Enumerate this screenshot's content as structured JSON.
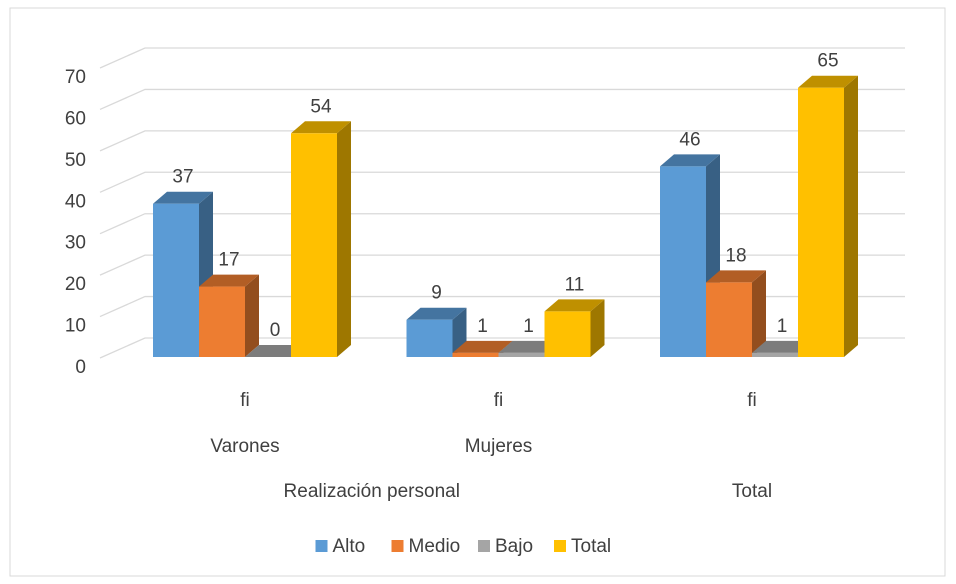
{
  "chart_data": {
    "type": "bar3d",
    "categories": [
      "fi",
      "fi",
      "fi"
    ],
    "subcategories": [
      "Varones",
      "Mujeres",
      null
    ],
    "groups": [
      "Realización personal",
      "Realización personal",
      "Total"
    ],
    "series": [
      {
        "name": "Alto",
        "color": "#5b9bd5",
        "values": [
          37,
          9,
          46
        ]
      },
      {
        "name": "Medio",
        "color": "#ed7d31",
        "values": [
          17,
          1,
          18
        ]
      },
      {
        "name": "Bajo",
        "color": "#a5a5a5",
        "values": [
          0,
          1,
          1
        ]
      },
      {
        "name": "Total",
        "color": "#ffc000",
        "values": [
          54,
          11,
          65
        ]
      }
    ],
    "ylim": [
      0,
      70
    ],
    "yticks": [
      0,
      10,
      20,
      30,
      40,
      50,
      60,
      70
    ],
    "grid": true,
    "legend": "bottom"
  }
}
